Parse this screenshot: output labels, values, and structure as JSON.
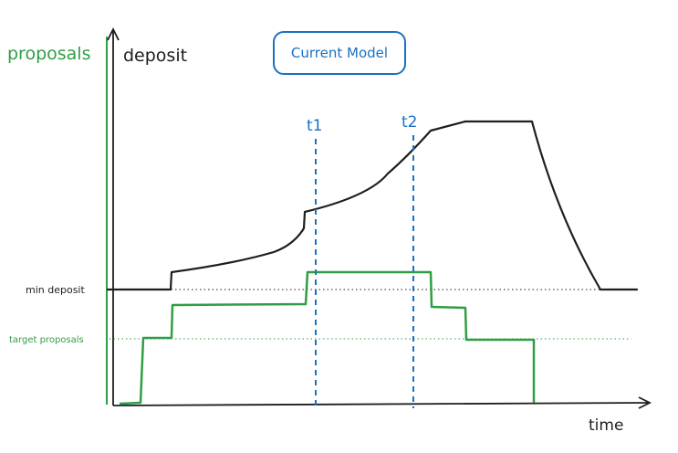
{
  "title": "Current Model",
  "axes": {
    "left_label": "proposals",
    "right_label": "deposit",
    "x_label": "time"
  },
  "levels": {
    "min_deposit": "min deposit",
    "target_proposals": "target proposals"
  },
  "markers": [
    "t1",
    "t2"
  ],
  "colors": {
    "green": "#2f9e44",
    "blue": "#1971c2",
    "black": "#1e1e1e"
  }
}
